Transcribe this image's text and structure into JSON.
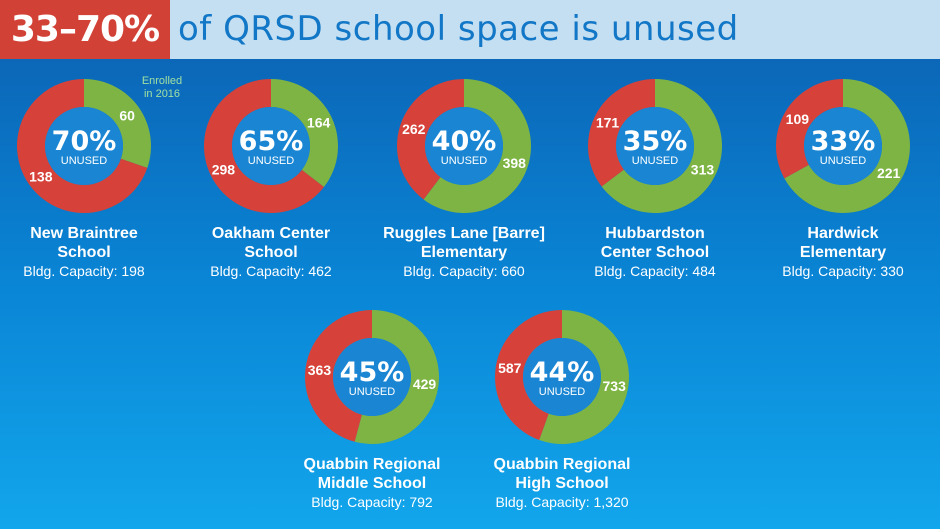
{
  "header": {
    "highlight": "33–70%",
    "rest": "of QRSD school space is unused"
  },
  "note": {
    "line1": "Enrolled",
    "line2": "in 2016"
  },
  "colors": {
    "unused": "#d6423a",
    "enrolled": "#7db443",
    "center": "#1a86d3",
    "header_bg": "#c5dff2",
    "highlight_bg": "#d24136"
  },
  "center_label": "UNUSED",
  "chart_data": [
    {
      "type": "pie",
      "name_line1": "New Braintree",
      "name_line2": "School",
      "capacity_label": "Bldg. Capacity: 198",
      "capacity": 198,
      "enrolled": 60,
      "unused": 138,
      "unused_pct": "70%"
    },
    {
      "type": "pie",
      "name_line1": "Oakham Center",
      "name_line2": "School",
      "capacity_label": "Bldg. Capacity: 462",
      "capacity": 462,
      "enrolled": 164,
      "unused": 298,
      "unused_pct": "65%"
    },
    {
      "type": "pie",
      "name_line1": "Ruggles Lane [Barre]",
      "name_line2": "Elementary",
      "capacity_label": "Bldg. Capacity: 660",
      "capacity": 660,
      "enrolled": 398,
      "unused": 262,
      "unused_pct": "40%"
    },
    {
      "type": "pie",
      "name_line1": "Hubbardston",
      "name_line2": "Center School",
      "capacity_label": "Bldg. Capacity: 484",
      "capacity": 484,
      "enrolled": 313,
      "unused": 171,
      "unused_pct": "35%"
    },
    {
      "type": "pie",
      "name_line1": "Hardwick",
      "name_line2": "Elementary",
      "capacity_label": "Bldg. Capacity: 330",
      "capacity": 330,
      "enrolled": 221,
      "unused": 109,
      "unused_pct": "33%"
    },
    {
      "type": "pie",
      "name_line1": "Quabbin Regional",
      "name_line2": "Middle School",
      "capacity_label": "Bldg. Capacity: 792",
      "capacity": 792,
      "enrolled": 429,
      "unused": 363,
      "unused_pct": "45%"
    },
    {
      "type": "pie",
      "name_line1": "Quabbin Regional",
      "name_line2": "High School",
      "capacity_label": "Bldg. Capacity: 1,320",
      "capacity": 1320,
      "enrolled": 733,
      "unused": 587,
      "unused_pct": "44%"
    }
  ]
}
